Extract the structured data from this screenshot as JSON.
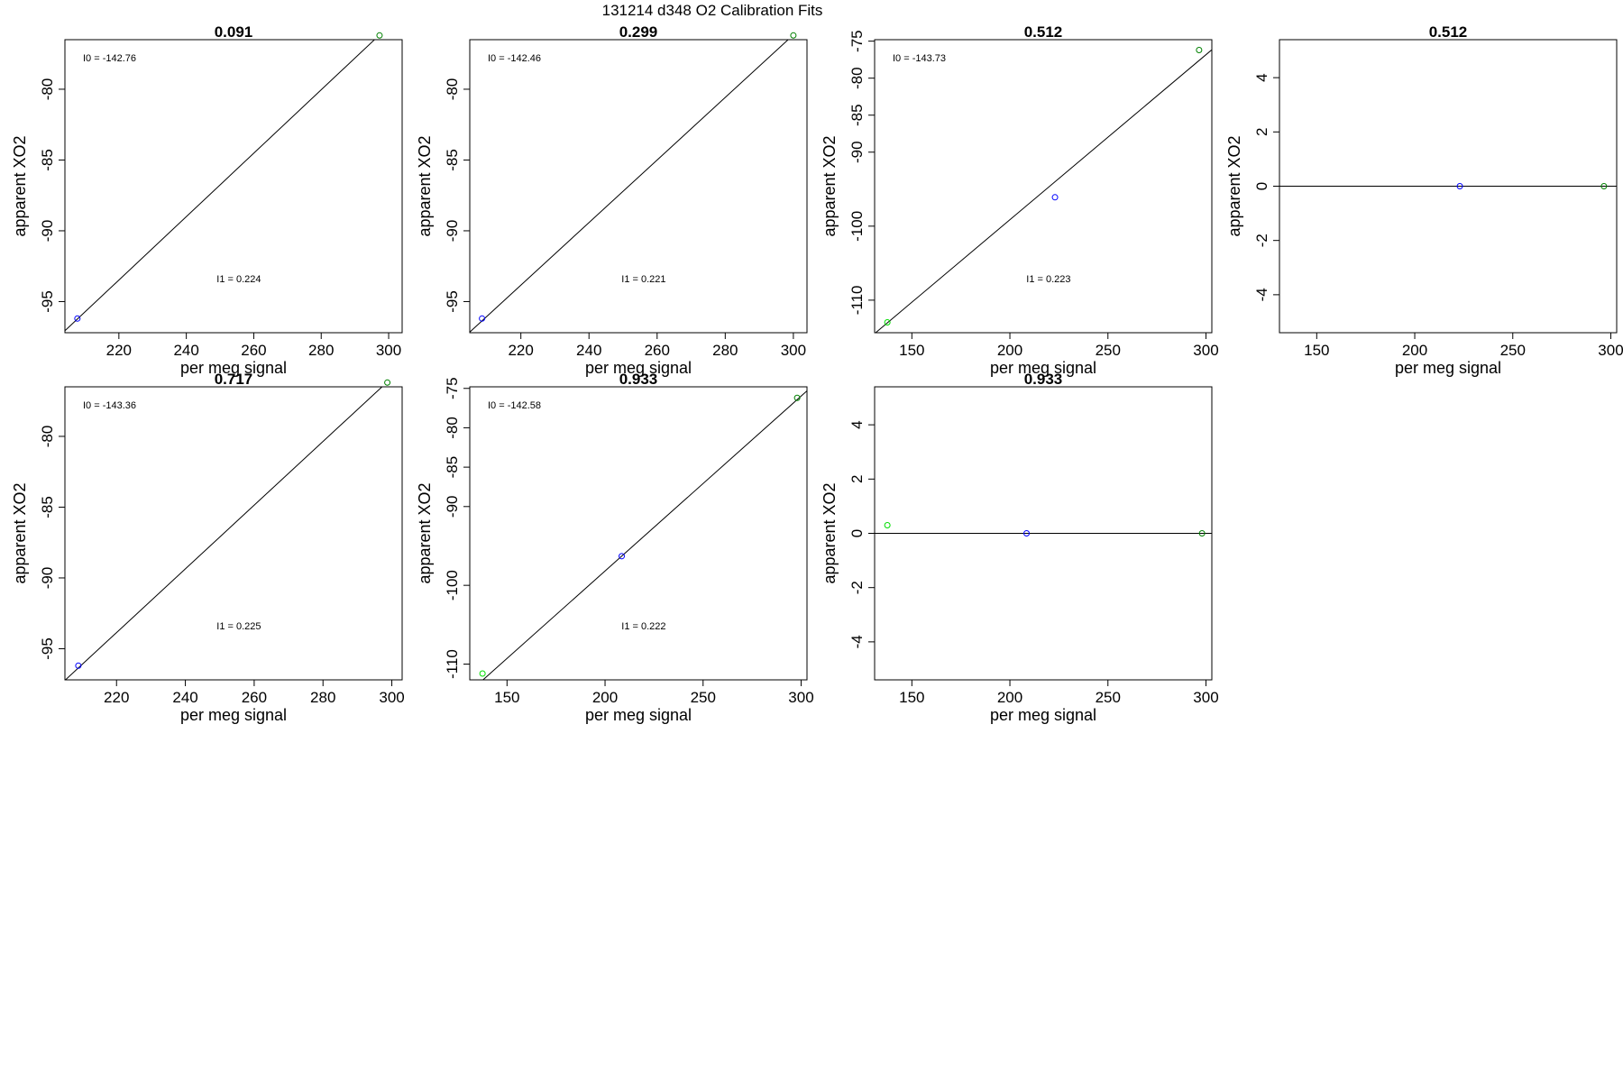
{
  "page": {
    "title": "131214   d348   O2 Calibration Fits"
  },
  "chart_data": [
    {
      "type": "scatter",
      "title": "0.091",
      "xlabel": "per meg signal",
      "ylabel": "apparent XO2",
      "xlim": [
        204,
        304
      ],
      "ylim": [
        -97.2,
        -76.5
      ],
      "xticks": [
        220,
        240,
        260,
        280,
        300
      ],
      "yticks": [
        -95,
        -90,
        -85,
        -80
      ],
      "line": {
        "slope": 0.224,
        "intercept": -142.76
      },
      "points": [
        {
          "x": 207.7,
          "y": -96.2,
          "color": "#0000ff"
        },
        {
          "x": 297.3,
          "y": -76.2,
          "color": "#008000"
        }
      ],
      "annotations": {
        "i0": "I0 =  -142.76",
        "i1": "I1 =  0.224"
      }
    },
    {
      "type": "scatter",
      "title": "0.299",
      "xlabel": "per meg signal",
      "ylabel": "apparent XO2",
      "xlim": [
        205,
        304
      ],
      "ylim": [
        -97.2,
        -76.5
      ],
      "xticks": [
        220,
        240,
        260,
        280,
        300
      ],
      "yticks": [
        -95,
        -90,
        -85,
        -80
      ],
      "line": {
        "slope": 0.221,
        "intercept": -142.46
      },
      "points": [
        {
          "x": 208.6,
          "y": -96.2,
          "color": "#0000ff"
        },
        {
          "x": 300.0,
          "y": -76.2,
          "color": "#008000"
        }
      ],
      "annotations": {
        "i0": "I0 =  -142.46",
        "i1": "I1 =  0.221"
      }
    },
    {
      "type": "scatter",
      "title": "0.512",
      "xlabel": "per meg signal",
      "ylabel": "apparent XO2",
      "xlim": [
        131,
        303
      ],
      "ylim": [
        -114.4,
        -74.8
      ],
      "xticks": [
        150,
        200,
        250,
        300
      ],
      "yticks": [
        -110,
        -100,
        -90,
        -85,
        -80,
        -75
      ],
      "line": {
        "slope": 0.223,
        "intercept": -143.73
      },
      "points": [
        {
          "x": 137.5,
          "y": -113.0,
          "color": "#00dd00"
        },
        {
          "x": 223.0,
          "y": -96.1,
          "color": "#0000ff"
        },
        {
          "x": 296.5,
          "y": -76.2,
          "color": "#008000"
        }
      ],
      "annotations": {
        "i0": "I0 =  -143.73",
        "i1": "I1 =  0.223"
      }
    },
    {
      "type": "scatter",
      "title": "0.512",
      "xlabel": "per meg signal",
      "ylabel": "apparent XO2",
      "xlim": [
        131,
        303
      ],
      "ylim": [
        -5.4,
        5.4
      ],
      "xticks": [
        150,
        200,
        250,
        300
      ],
      "yticks": [
        -4,
        -2,
        0,
        2,
        4
      ],
      "line": {
        "slope": 0,
        "intercept": 0
      },
      "points": [
        {
          "x": 223.0,
          "y": 0,
          "color": "#0000ff"
        },
        {
          "x": 296.5,
          "y": 0,
          "color": "#008000"
        }
      ],
      "annotations": {
        "i0": "",
        "i1": ""
      }
    },
    {
      "type": "scatter",
      "title": "0.717",
      "xlabel": "per meg signal",
      "ylabel": "apparent XO2",
      "xlim": [
        205,
        303
      ],
      "ylim": [
        -97.2,
        -76.5
      ],
      "xticks": [
        220,
        240,
        260,
        280,
        300
      ],
      "yticks": [
        -95,
        -90,
        -85,
        -80
      ],
      "line": {
        "slope": 0.225,
        "intercept": -143.36
      },
      "points": [
        {
          "x": 208.9,
          "y": -96.2,
          "color": "#0000ff"
        },
        {
          "x": 298.7,
          "y": -76.2,
          "color": "#008000"
        }
      ],
      "annotations": {
        "i0": "I0 =  -143.36",
        "i1": "I1 =  0.225"
      }
    },
    {
      "type": "scatter",
      "title": "0.933",
      "xlabel": "per meg signal",
      "ylabel": "apparent XO2",
      "xlim": [
        131,
        303
      ],
      "ylim": [
        -112.0,
        -74.8
      ],
      "xticks": [
        150,
        200,
        250,
        300
      ],
      "yticks": [
        -110,
        -100,
        -90,
        -85,
        -80,
        -75
      ],
      "line": {
        "slope": 0.222,
        "intercept": -142.58
      },
      "points": [
        {
          "x": 137.5,
          "y": -111.2,
          "color": "#00dd00"
        },
        {
          "x": 208.5,
          "y": -96.3,
          "color": "#0000ff"
        },
        {
          "x": 298.0,
          "y": -76.2,
          "color": "#008000"
        }
      ],
      "annotations": {
        "i0": "I0 =  -142.58",
        "i1": "I1 =  0.222"
      }
    },
    {
      "type": "scatter",
      "title": "0.933",
      "xlabel": "per meg signal",
      "ylabel": "apparent XO2",
      "xlim": [
        131,
        303
      ],
      "ylim": [
        -5.4,
        5.4
      ],
      "xticks": [
        150,
        200,
        250,
        300
      ],
      "yticks": [
        -4,
        -2,
        0,
        2,
        4
      ],
      "line": {
        "slope": 0,
        "intercept": 0
      },
      "points": [
        {
          "x": 137.5,
          "y": 0.3,
          "color": "#00dd00"
        },
        {
          "x": 208.5,
          "y": 0,
          "color": "#0000ff"
        },
        {
          "x": 298.0,
          "y": 0,
          "color": "#008000"
        }
      ],
      "annotations": {
        "i0": "",
        "i1": ""
      }
    }
  ]
}
